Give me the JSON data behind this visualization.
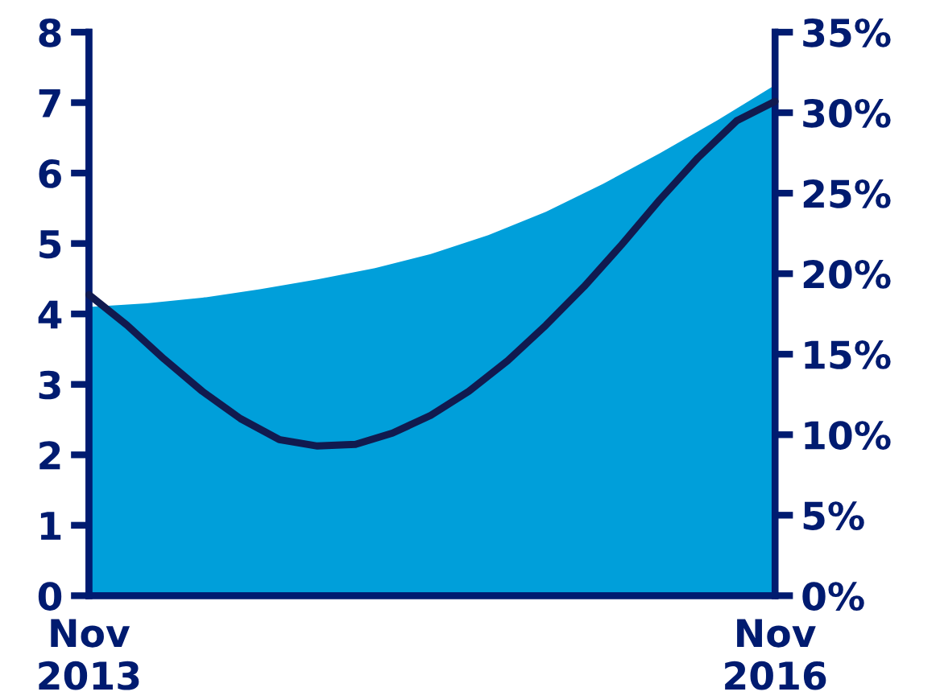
{
  "chart_data": {
    "type": "area",
    "xlim": [
      "2013-11",
      "2016-11"
    ],
    "xticks": [
      {
        "value": "2013-11",
        "label": "Nov\n2013"
      },
      {
        "value": "2016-11",
        "label": "Nov\n2016"
      }
    ],
    "ylim": [
      0,
      8
    ],
    "yticks": [
      0,
      1,
      2,
      3,
      4,
      5,
      6,
      7,
      8
    ],
    "y2lim": [
      0,
      35
    ],
    "y2ticks": [
      {
        "value": 0,
        "label": "0%"
      },
      {
        "value": 5,
        "label": "5%"
      },
      {
        "value": 10,
        "label": "10%"
      },
      {
        "value": 15,
        "label": "15%"
      },
      {
        "value": 20,
        "label": "20%"
      },
      {
        "value": 25,
        "label": "25%"
      },
      {
        "value": 30,
        "label": "30%"
      },
      {
        "value": 35,
        "label": "35%"
      }
    ],
    "grid": false,
    "legend": false,
    "series": [
      {
        "color": "#009fda",
        "x": [
          "2013-11",
          "2014-02",
          "2014-05",
          "2014-08",
          "2014-11",
          "2015-02",
          "2015-05",
          "2015-08",
          "2015-11",
          "2016-02",
          "2016-05",
          "2016-08",
          "2016-11"
        ],
        "values": [
          4.1,
          4.15,
          4.23,
          4.35,
          4.49,
          4.65,
          4.85,
          5.12,
          5.45,
          5.85,
          6.28,
          6.75,
          7.25
        ]
      },
      {
        "type": "line",
        "axis": "y2",
        "color": "#111a4f",
        "line_style": "solid",
        "x": [
          "2013-11",
          "2014-01",
          "2014-03",
          "2014-05",
          "2014-07",
          "2014-09",
          "2014-11",
          "2015-01",
          "2015-03",
          "2015-05",
          "2015-07",
          "2015-09",
          "2015-11",
          "2016-01",
          "2016-03",
          "2016-05",
          "2016-07",
          "2016-09",
          "2016-11"
        ],
        "values": [
          18.7,
          16.8,
          14.7,
          12.7,
          11.0,
          9.7,
          9.3,
          9.4,
          10.1,
          11.2,
          12.7,
          14.6,
          16.8,
          19.2,
          21.8,
          24.6,
          27.2,
          29.5,
          30.7
        ]
      }
    ]
  }
}
